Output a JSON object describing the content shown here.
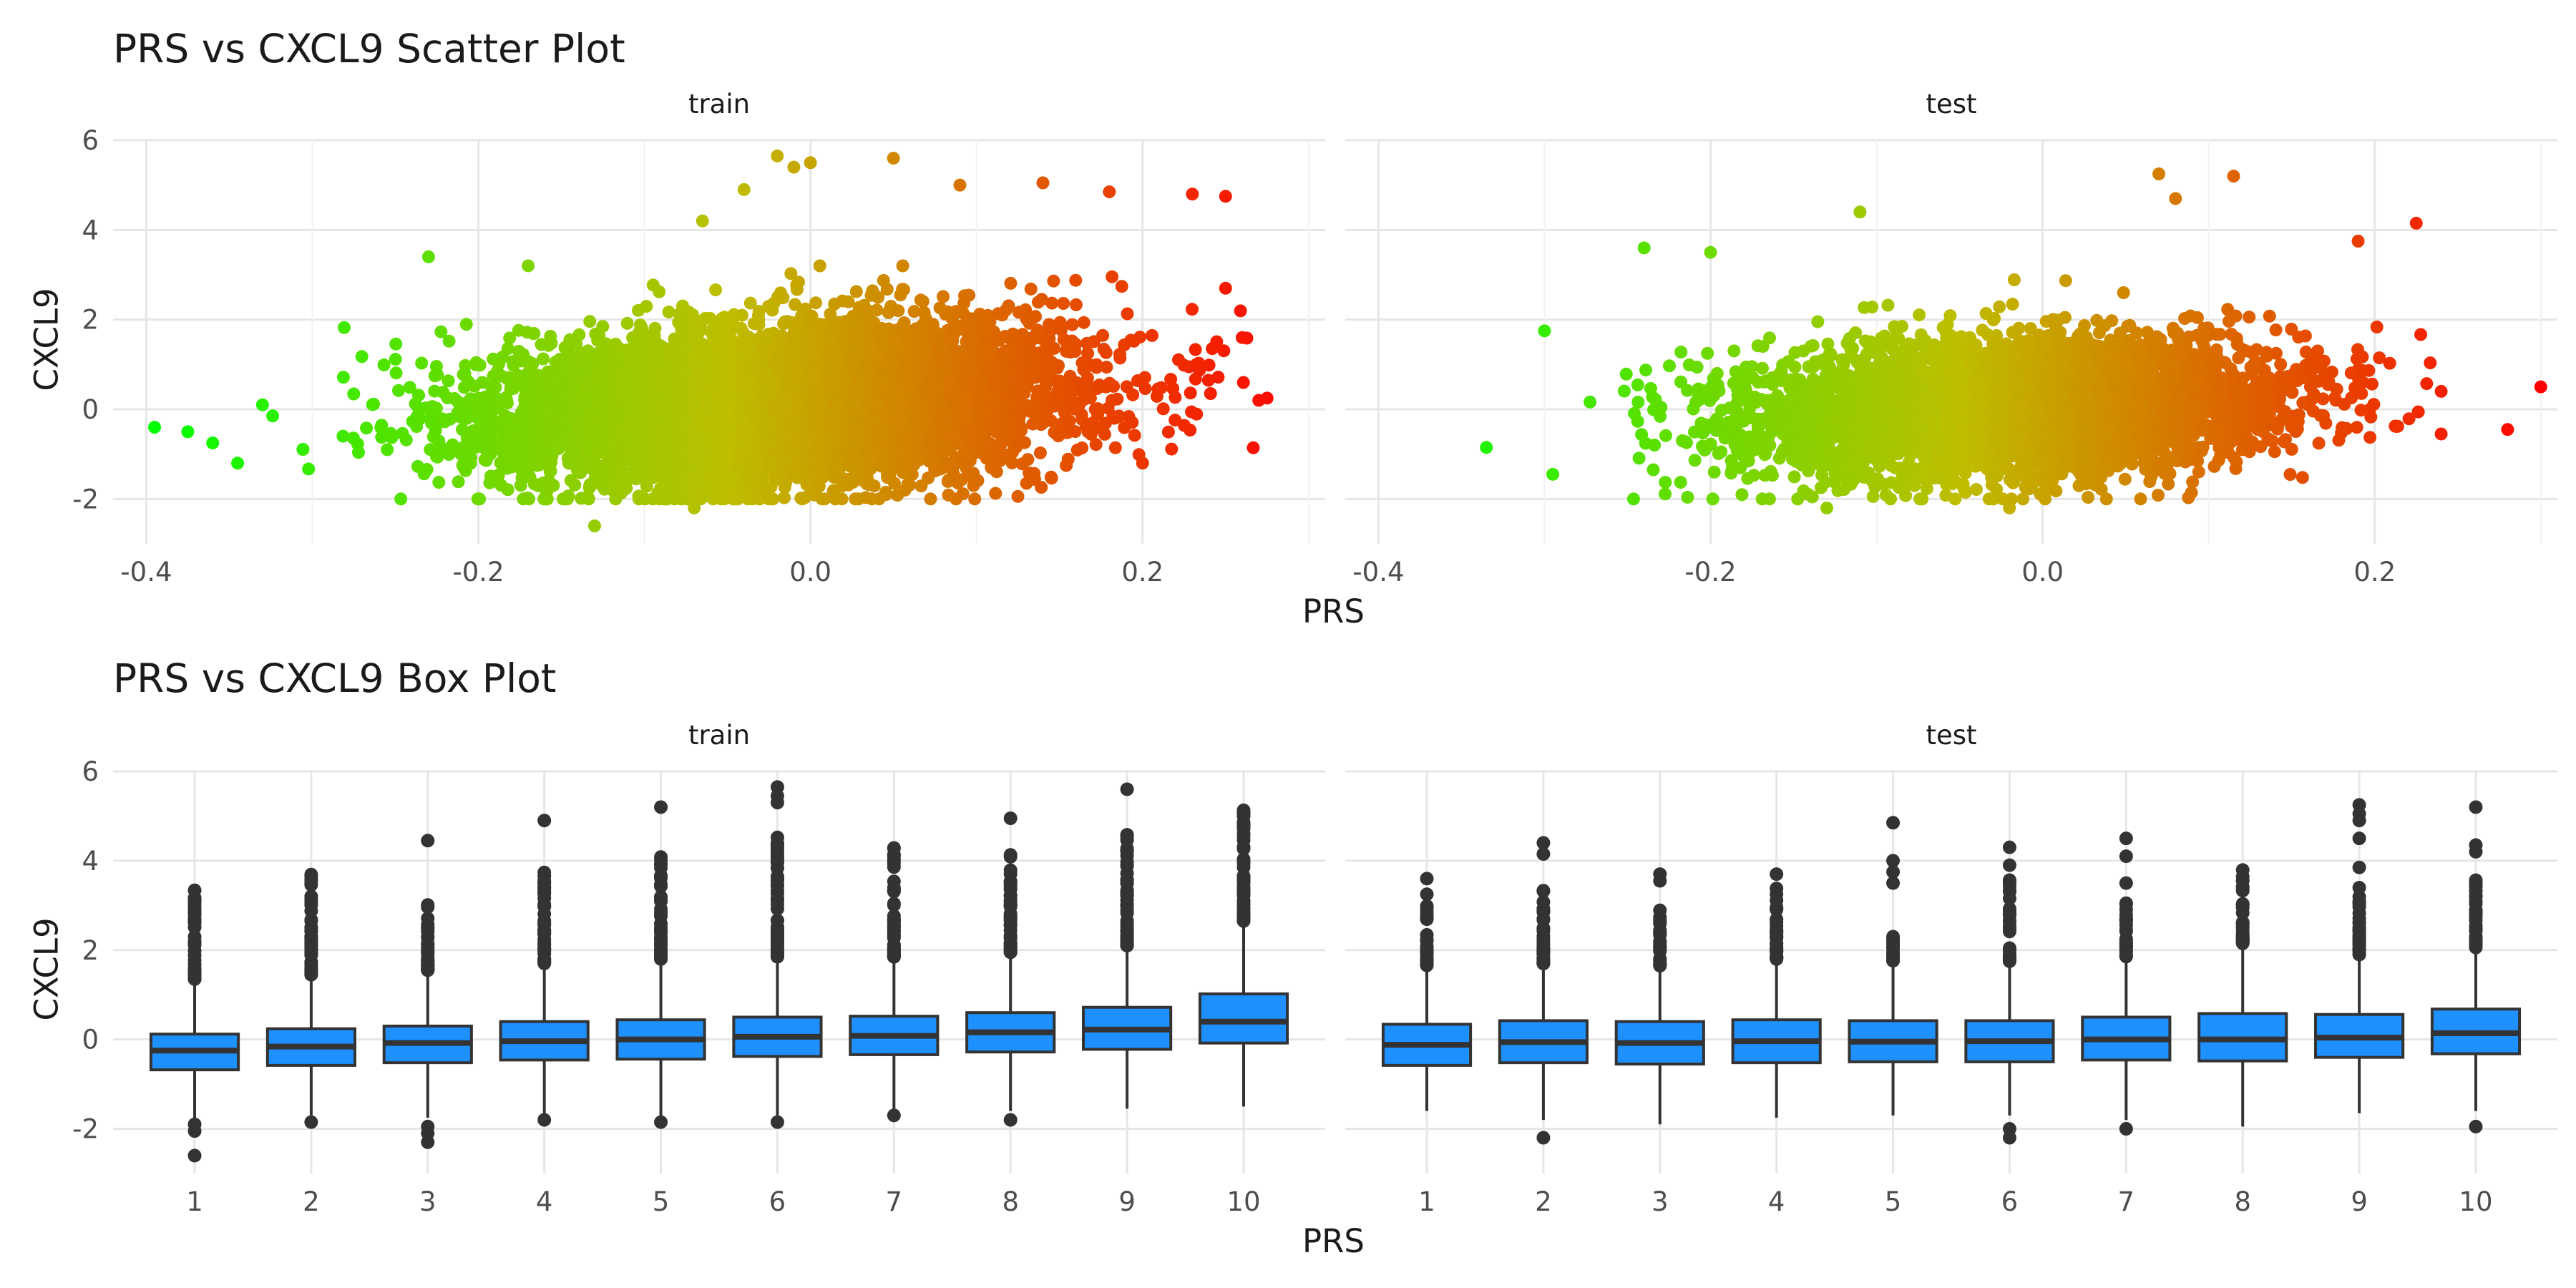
{
  "chart_data": [
    {
      "type": "scatter",
      "title": "PRS vs CXCL9 Scatter Plot",
      "xlabel": "PRS",
      "ylabel": "CXCL9",
      "color_scale": {
        "low": "#00ff00",
        "high": "#ff0000",
        "mapped_to": "PRS"
      },
      "grid": true,
      "legend": "none",
      "panels": [
        {
          "name": "train",
          "xlim": [
            -0.42,
            0.31
          ],
          "ylim": [
            -3.0,
            6.0
          ],
          "x_ticks": [
            -0.4,
            -0.2,
            0.0,
            0.2
          ],
          "x_tick_labels": [
            "-0.4",
            "-0.2",
            "0.0",
            "0.2"
          ],
          "y_ticks": [
            -2,
            0,
            2,
            4,
            6
          ],
          "y_tick_labels": [
            "-2",
            "0",
            "2",
            "4",
            "6"
          ],
          "point_cloud": {
            "n": 7000,
            "x_mean": -0.02,
            "x_sd": 0.085,
            "x_range": [
              -0.33,
              0.27
            ],
            "slope": 2.2,
            "y_intercept": 0.15,
            "y_sd": 0.85
          },
          "points": [
            {
              "x": -0.395,
              "y": -0.4
            },
            {
              "x": -0.375,
              "y": -0.5
            },
            {
              "x": -0.36,
              "y": -0.75
            },
            {
              "x": -0.345,
              "y": -1.2
            },
            {
              "x": -0.33,
              "y": 0.1
            },
            {
              "x": -0.23,
              "y": 3.4
            },
            {
              "x": -0.17,
              "y": 3.2
            },
            {
              "x": -0.13,
              "y": -2.6
            },
            {
              "x": -0.07,
              "y": -2.2
            },
            {
              "x": -0.065,
              "y": 4.2
            },
            {
              "x": -0.04,
              "y": 4.9
            },
            {
              "x": -0.02,
              "y": 5.65
            },
            {
              "x": -0.01,
              "y": 5.4
            },
            {
              "x": 0.0,
              "y": 5.5
            },
            {
              "x": 0.05,
              "y": 5.6
            },
            {
              "x": 0.09,
              "y": 5.0
            },
            {
              "x": 0.14,
              "y": 5.05
            },
            {
              "x": 0.18,
              "y": 4.85
            },
            {
              "x": 0.2,
              "y": -1.2
            },
            {
              "x": 0.23,
              "y": 4.8
            },
            {
              "x": 0.25,
              "y": 4.75
            },
            {
              "x": 0.25,
              "y": 2.7
            },
            {
              "x": 0.26,
              "y": 1.6
            },
            {
              "x": 0.27,
              "y": 0.2
            },
            {
              "x": 0.275,
              "y": 0.25
            }
          ]
        },
        {
          "name": "test",
          "xlim": [
            -0.42,
            0.31
          ],
          "ylim": [
            -3.0,
            6.0
          ],
          "x_ticks": [
            -0.4,
            -0.2,
            0.0,
            0.2
          ],
          "x_tick_labels": [
            "-0.4",
            "-0.2",
            "0.0",
            "0.2"
          ],
          "y_ticks": [
            -2,
            0,
            2,
            4,
            6
          ],
          "y_tick_labels": [
            "-2",
            "0",
            "2",
            "4",
            "6"
          ],
          "point_cloud": {
            "n": 4500,
            "x_mean": -0.02,
            "x_sd": 0.08,
            "x_range": [
              -0.3,
              0.24
            ],
            "slope": 1.4,
            "y_intercept": 0.05,
            "y_sd": 0.75
          },
          "points": [
            {
              "x": -0.335,
              "y": -0.85
            },
            {
              "x": -0.3,
              "y": 1.75
            },
            {
              "x": -0.295,
              "y": -1.45
            },
            {
              "x": -0.24,
              "y": 3.6
            },
            {
              "x": -0.2,
              "y": 3.5
            },
            {
              "x": -0.13,
              "y": -2.2
            },
            {
              "x": -0.11,
              "y": 4.4
            },
            {
              "x": -0.02,
              "y": -2.2
            },
            {
              "x": 0.07,
              "y": 5.25
            },
            {
              "x": 0.08,
              "y": 4.7
            },
            {
              "x": 0.115,
              "y": 5.2
            },
            {
              "x": 0.19,
              "y": 3.75
            },
            {
              "x": 0.225,
              "y": 4.15
            },
            {
              "x": 0.24,
              "y": -0.55
            },
            {
              "x": 0.24,
              "y": 0.4
            },
            {
              "x": 0.28,
              "y": -0.45
            },
            {
              "x": 0.3,
              "y": 0.5
            }
          ]
        }
      ]
    },
    {
      "type": "box",
      "title": "PRS vs CXCL9 Box Plot",
      "xlabel": "PRS",
      "ylabel": "CXCL9",
      "box_color": "#1e90ff",
      "line_color": "#333333",
      "grid": true,
      "legend": "none",
      "panels": [
        {
          "name": "train",
          "categories": [
            "1",
            "2",
            "3",
            "4",
            "5",
            "6",
            "7",
            "8",
            "9",
            "10"
          ],
          "ylim": [
            -3.0,
            6.0
          ],
          "y_ticks": [
            -2,
            0,
            2,
            4,
            6
          ],
          "y_tick_labels": [
            "-2",
            "0",
            "2",
            "4",
            "6"
          ],
          "boxes": [
            {
              "q1": -0.68,
              "median": -0.25,
              "q3": 0.12,
              "whisker_low": -1.8,
              "whisker_high": 1.3,
              "outlier_range": [
                1.35,
                3.4
              ],
              "outliers_low": [
                -1.9,
                -2.05,
                -2.6
              ]
            },
            {
              "q1": -0.58,
              "median": -0.16,
              "q3": 0.24,
              "whisker_low": -1.7,
              "whisker_high": 1.4,
              "outlier_range": [
                1.45,
                3.85
              ],
              "outliers_low": [
                -1.85
              ]
            },
            {
              "q1": -0.52,
              "median": -0.08,
              "q3": 0.3,
              "whisker_low": -1.75,
              "whisker_high": 1.5,
              "outlier_range": [
                1.55,
                3.25
              ],
              "outliers": [
                4.45
              ],
              "outliers_low": [
                -1.95,
                -2.1,
                -2.3
              ]
            },
            {
              "q1": -0.46,
              "median": -0.04,
              "q3": 0.4,
              "whisker_low": -1.7,
              "whisker_high": 1.65,
              "outlier_range": [
                1.7,
                3.85
              ],
              "outliers": [
                4.9
              ],
              "outliers_low": [
                -1.8
              ]
            },
            {
              "q1": -0.44,
              "median": 0.0,
              "q3": 0.44,
              "whisker_low": -1.75,
              "whisker_high": 1.75,
              "outlier_range": [
                1.8,
                4.2
              ],
              "outliers": [
                5.2
              ],
              "outliers_low": [
                -1.85
              ]
            },
            {
              "q1": -0.38,
              "median": 0.06,
              "q3": 0.5,
              "whisker_low": -1.7,
              "whisker_high": 1.8,
              "outlier_range": [
                1.85,
                4.7
              ],
              "outliers": [
                5.3,
                5.45,
                5.65
              ],
              "outliers_low": [
                -1.85
              ]
            },
            {
              "q1": -0.34,
              "median": 0.08,
              "q3": 0.52,
              "whisker_low": -1.65,
              "whisker_high": 1.8,
              "outlier_range": [
                1.85,
                4.3
              ],
              "outliers_low": [
                -1.7
              ]
            },
            {
              "q1": -0.28,
              "median": 0.16,
              "q3": 0.6,
              "whisker_low": -1.6,
              "whisker_high": 1.9,
              "outlier_range": [
                1.95,
                4.15
              ],
              "outliers": [
                4.95
              ],
              "outliers_low": [
                -1.8
              ]
            },
            {
              "q1": -0.22,
              "median": 0.22,
              "q3": 0.72,
              "whisker_low": -1.55,
              "whisker_high": 2.05,
              "outlier_range": [
                2.1,
                4.6
              ],
              "outliers": [
                5.6
              ]
            },
            {
              "q1": -0.08,
              "median": 0.4,
              "q3": 1.02,
              "whisker_low": -1.5,
              "whisker_high": 2.6,
              "outlier_range": [
                2.65,
                5.15
              ]
            }
          ]
        },
        {
          "name": "test",
          "categories": [
            "1",
            "2",
            "3",
            "4",
            "5",
            "6",
            "7",
            "8",
            "9",
            "10"
          ],
          "ylim": [
            -3.0,
            6.0
          ],
          "y_ticks": [
            -2,
            0,
            2,
            4,
            6
          ],
          "y_tick_labels": [
            "-2",
            "0",
            "2",
            "4",
            "6"
          ],
          "boxes": [
            {
              "q1": -0.58,
              "median": -0.12,
              "q3": 0.34,
              "whisker_low": -1.6,
              "whisker_high": 1.6,
              "outlier_range": [
                1.65,
                3.0
              ],
              "outliers": [
                3.25,
                3.6
              ]
            },
            {
              "q1": -0.52,
              "median": -0.06,
              "q3": 0.42,
              "whisker_low": -1.8,
              "whisker_high": 1.65,
              "outlier_range": [
                1.7,
                3.35
              ],
              "outliers": [
                4.15,
                4.4
              ],
              "outliers_low": [
                -2.2
              ]
            },
            {
              "q1": -0.55,
              "median": -0.08,
              "q3": 0.4,
              "whisker_low": -1.9,
              "whisker_high": 1.6,
              "outlier_range": [
                1.65,
                3.0
              ],
              "outliers": [
                3.55,
                3.7
              ]
            },
            {
              "q1": -0.52,
              "median": -0.04,
              "q3": 0.44,
              "whisker_low": -1.75,
              "whisker_high": 1.75,
              "outlier_range": [
                1.8,
                3.5
              ],
              "outliers": [
                3.7
              ]
            },
            {
              "q1": -0.5,
              "median": -0.05,
              "q3": 0.42,
              "whisker_low": -1.7,
              "whisker_high": 1.7,
              "outlier_range": [
                1.75,
                2.6
              ],
              "outliers": [
                3.5,
                3.75,
                4.0,
                4.85
              ]
            },
            {
              "q1": -0.5,
              "median": -0.04,
              "q3": 0.42,
              "whisker_low": -1.7,
              "whisker_high": 1.7,
              "outlier_range": [
                1.75,
                3.6
              ],
              "outliers": [
                3.9,
                4.3
              ],
              "outliers_low": [
                -2.0,
                -2.2
              ]
            },
            {
              "q1": -0.46,
              "median": 0.0,
              "q3": 0.5,
              "whisker_low": -1.8,
              "whisker_high": 1.8,
              "outlier_range": [
                1.85,
                3.1
              ],
              "outliers": [
                3.5,
                4.1,
                4.5
              ],
              "outliers_low": [
                -2.0
              ]
            },
            {
              "q1": -0.48,
              "median": 0.0,
              "q3": 0.58,
              "whisker_low": -1.95,
              "whisker_high": 2.1,
              "outlier_range": [
                2.15,
                3.85
              ]
            },
            {
              "q1": -0.4,
              "median": 0.04,
              "q3": 0.56,
              "whisker_low": -1.65,
              "whisker_high": 1.85,
              "outlier_range": [
                1.9,
                3.4
              ],
              "outliers": [
                3.85,
                4.5,
                4.9,
                5.05,
                5.25
              ]
            },
            {
              "q1": -0.32,
              "median": 0.14,
              "q3": 0.68,
              "whisker_low": -1.6,
              "whisker_high": 2.0,
              "outlier_range": [
                2.05,
                3.8
              ],
              "outliers": [
                4.2,
                4.35,
                5.2
              ],
              "outliers_low": [
                -1.95
              ]
            }
          ]
        }
      ]
    }
  ]
}
